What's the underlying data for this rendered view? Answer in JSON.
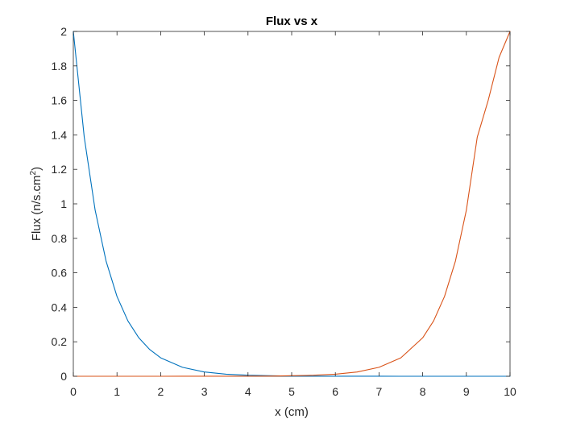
{
  "chart_data": {
    "type": "line",
    "title": "Flux vs x",
    "xlabel": "x (cm)",
    "ylabel": "Flux (n/s.cm",
    "ylabel_superscript": "2",
    "ylabel_close": ")",
    "xlim": [
      0,
      10
    ],
    "ylim": [
      0,
      2
    ],
    "x_ticks": [
      "0",
      "1",
      "2",
      "3",
      "4",
      "5",
      "6",
      "7",
      "8",
      "9",
      "10"
    ],
    "y_ticks": [
      "0",
      "0.2",
      "0.4",
      "0.6",
      "0.8",
      "1",
      "1.2",
      "1.4",
      "1.6",
      "1.8",
      "2"
    ],
    "grid": false,
    "legend": false,
    "x": [
      0,
      0.25,
      0.5,
      0.75,
      1,
      1.25,
      1.5,
      1.75,
      2,
      2.5,
      3,
      3.5,
      4,
      4.5,
      5,
      5.5,
      6,
      6.5,
      7,
      7.5,
      8,
      8.25,
      8.5,
      8.75,
      9,
      9.25,
      9.5,
      9.75,
      10
    ],
    "series": [
      {
        "color": "#0072BD",
        "values": [
          2.0,
          1.387,
          0.963,
          0.668,
          0.463,
          0.321,
          0.223,
          0.155,
          0.107,
          0.052,
          0.025,
          0.012,
          0.006,
          0.003,
          0.001,
          0.0007,
          0.0003,
          0.0002,
          0.0001,
          0.0,
          0.0,
          0.0,
          0.0,
          0.0,
          0.0,
          0.0,
          0.0,
          0.0,
          0.0
        ]
      },
      {
        "color": "#D95319",
        "values": [
          0.0,
          0.0,
          0.0,
          0.0,
          0.0,
          0.0,
          0.0,
          0.0,
          0.0,
          0.0001,
          0.0002,
          0.0003,
          0.0007,
          0.001,
          0.003,
          0.006,
          0.012,
          0.025,
          0.052,
          0.107,
          0.223,
          0.321,
          0.463,
          0.668,
          0.963,
          1.387,
          1.6,
          1.85,
          2.0
        ]
      }
    ]
  }
}
